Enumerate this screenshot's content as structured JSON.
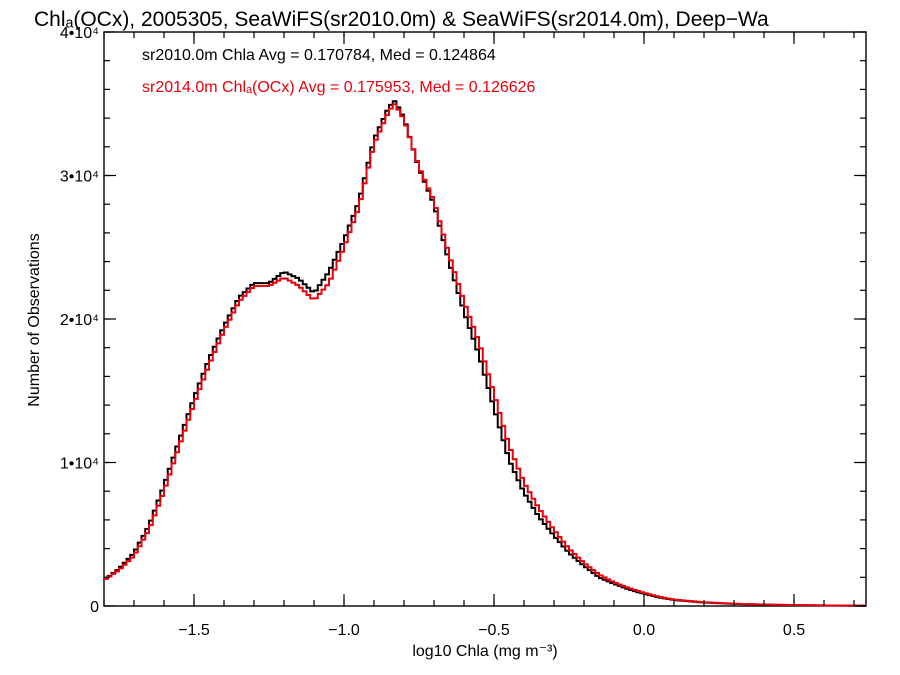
{
  "chart_data": {
    "type": "line",
    "title": "Chlₐ(OCx), 2005305, SeaWiFS(sr2010.0m) & SeaWiFS(sr2014.0m), Deep−Wa",
    "xlabel": "log10 Chla (mg m⁻³)",
    "ylabel": "Number of Observations",
    "xlim": [
      -1.8,
      0.74
    ],
    "ylim": [
      0,
      40000
    ],
    "x_ticks": [
      {
        "value": -1.5,
        "label": "−1.5"
      },
      {
        "value": -1.0,
        "label": "−1.0"
      },
      {
        "value": -0.5,
        "label": "−0.5"
      },
      {
        "value": 0.0,
        "label": "0.0"
      },
      {
        "value": 0.5,
        "label": "0.5"
      }
    ],
    "y_ticks": [
      {
        "value": 0,
        "label": "0"
      },
      {
        "value": 10000,
        "label": "1•10⁴"
      },
      {
        "value": 20000,
        "label": "2•10⁴"
      },
      {
        "value": 30000,
        "label": "3•10⁴"
      },
      {
        "value": 40000,
        "label": "4•10⁴"
      }
    ],
    "series": [
      {
        "name": "sr2010.0m Chla Avg = 0.170784, Med = 0.124864",
        "color": "#000000",
        "x": [
          -1.8,
          -1.75,
          -1.7,
          -1.65,
          -1.6,
          -1.55,
          -1.5,
          -1.45,
          -1.4,
          -1.35,
          -1.3,
          -1.25,
          -1.2,
          -1.15,
          -1.1,
          -1.05,
          -1.0,
          -0.95,
          -0.9,
          -0.85,
          -0.83,
          -0.8,
          -0.75,
          -0.7,
          -0.65,
          -0.6,
          -0.55,
          -0.5,
          -0.45,
          -0.4,
          -0.35,
          -0.3,
          -0.25,
          -0.2,
          -0.15,
          -0.1,
          -0.05,
          0.0,
          0.05,
          0.1,
          0.2,
          0.3,
          0.4,
          0.5,
          0.6,
          0.74
        ],
        "y": [
          1800,
          2600,
          3700,
          5600,
          8400,
          11500,
          14500,
          17200,
          19500,
          21500,
          22500,
          22500,
          23300,
          22800,
          21800,
          23300,
          25500,
          28200,
          32500,
          34800,
          35200,
          34000,
          30500,
          28000,
          24000,
          20500,
          17500,
          13800,
          10200,
          7900,
          6200,
          4900,
          3700,
          2800,
          2000,
          1550,
          1150,
          850,
          600,
          420,
          240,
          150,
          95,
          60,
          40,
          20
        ]
      },
      {
        "name": "sr2014.0m Chlₐ(OCx) Avg = 0.175953, Med = 0.126626",
        "color": "#e8000b",
        "x": [
          -1.8,
          -1.75,
          -1.7,
          -1.65,
          -1.6,
          -1.55,
          -1.5,
          -1.45,
          -1.4,
          -1.35,
          -1.3,
          -1.25,
          -1.2,
          -1.15,
          -1.1,
          -1.05,
          -1.0,
          -0.95,
          -0.9,
          -0.85,
          -0.83,
          -0.8,
          -0.75,
          -0.7,
          -0.65,
          -0.6,
          -0.55,
          -0.5,
          -0.45,
          -0.4,
          -0.35,
          -0.3,
          -0.25,
          -0.2,
          -0.15,
          -0.1,
          -0.05,
          0.0,
          0.05,
          0.1,
          0.2,
          0.3,
          0.4,
          0.5,
          0.6,
          0.74
        ],
        "y": [
          1800,
          2500,
          3500,
          5300,
          8000,
          11100,
          14100,
          16800,
          19200,
          21200,
          22300,
          22300,
          22900,
          22300,
          21300,
          22500,
          25000,
          27800,
          32200,
          34500,
          35000,
          33900,
          30600,
          28200,
          24500,
          21200,
          18400,
          14800,
          11200,
          8600,
          6800,
          5300,
          4000,
          3000,
          2200,
          1650,
          1250,
          920,
          650,
          450,
          260,
          160,
          100,
          65,
          42,
          22
        ]
      }
    ],
    "legend_location": "top-left",
    "grid": false
  }
}
